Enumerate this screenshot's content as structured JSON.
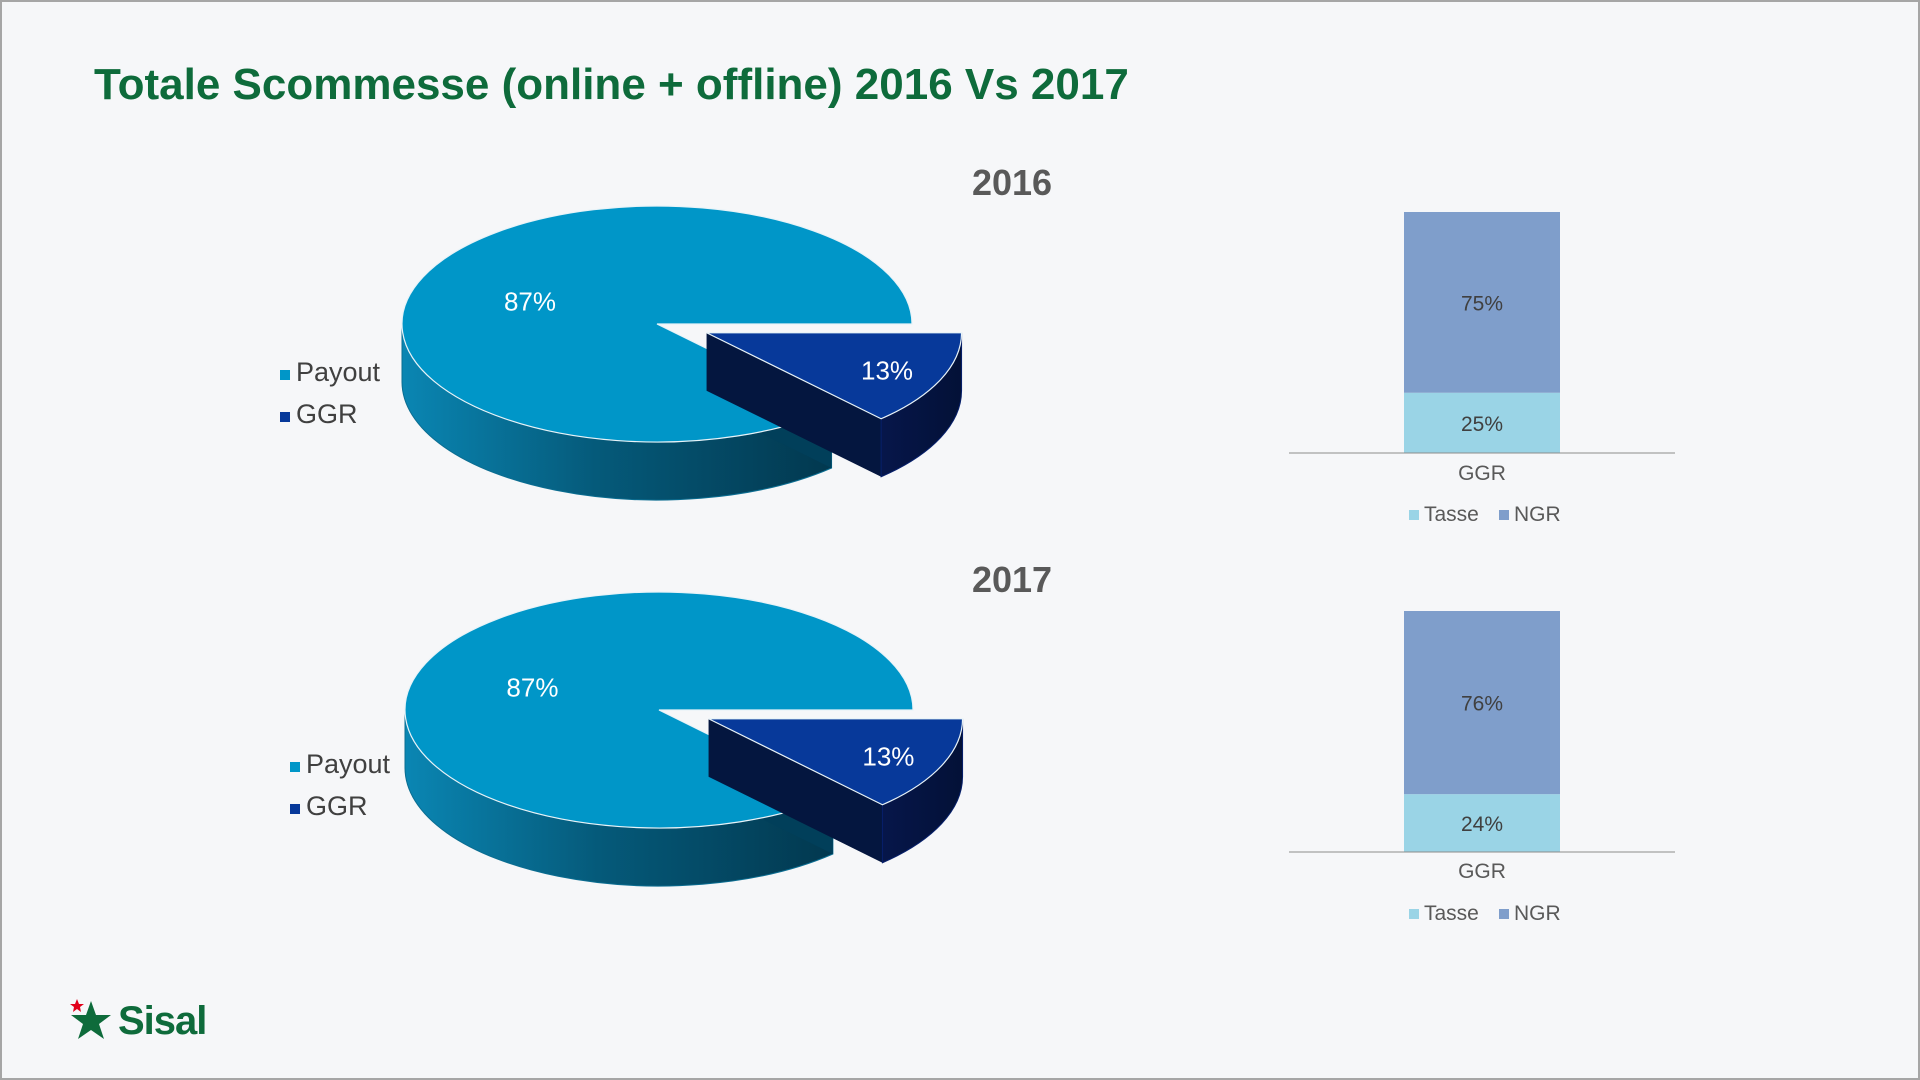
{
  "slide": {
    "title": "Totale Scommesse (online + offline) 2016 Vs 2017",
    "logo_text": "Sisal"
  },
  "colors": {
    "payout": "#0096c8",
    "ggr": "#07399a",
    "tasse": "#9ad4e6",
    "ngr": "#7f9ecb",
    "title": "#0e6b3b",
    "year_label": "#595959"
  },
  "chart_data": [
    {
      "type": "pie",
      "title": "2016",
      "categories": [
        "Payout",
        "GGR"
      ],
      "values": [
        87,
        13
      ],
      "labels": [
        "87%",
        "13%"
      ],
      "legend": [
        "Payout",
        "GGR"
      ],
      "legend_position": "left",
      "style": "3d-exploded"
    },
    {
      "type": "bar",
      "stacked": true,
      "title": "",
      "categories": [
        "GGR"
      ],
      "series": [
        {
          "name": "Tasse",
          "values": [
            25
          ],
          "label": "25%"
        },
        {
          "name": "NGR",
          "values": [
            75
          ],
          "label": "75%"
        }
      ],
      "ylim": [
        0,
        100
      ],
      "legend_position": "bottom"
    },
    {
      "type": "pie",
      "title": "2017",
      "categories": [
        "Payout",
        "GGR"
      ],
      "values": [
        87,
        13
      ],
      "labels": [
        "87%",
        "13%"
      ],
      "legend": [
        "Payout",
        "GGR"
      ],
      "legend_position": "left",
      "style": "3d-exploded"
    },
    {
      "type": "bar",
      "stacked": true,
      "title": "",
      "categories": [
        "GGR"
      ],
      "series": [
        {
          "name": "Tasse",
          "values": [
            24
          ],
          "label": "24%"
        },
        {
          "name": "NGR",
          "values": [
            76
          ],
          "label": "76%"
        }
      ],
      "ylim": [
        0,
        100
      ],
      "legend_position": "bottom"
    }
  ]
}
